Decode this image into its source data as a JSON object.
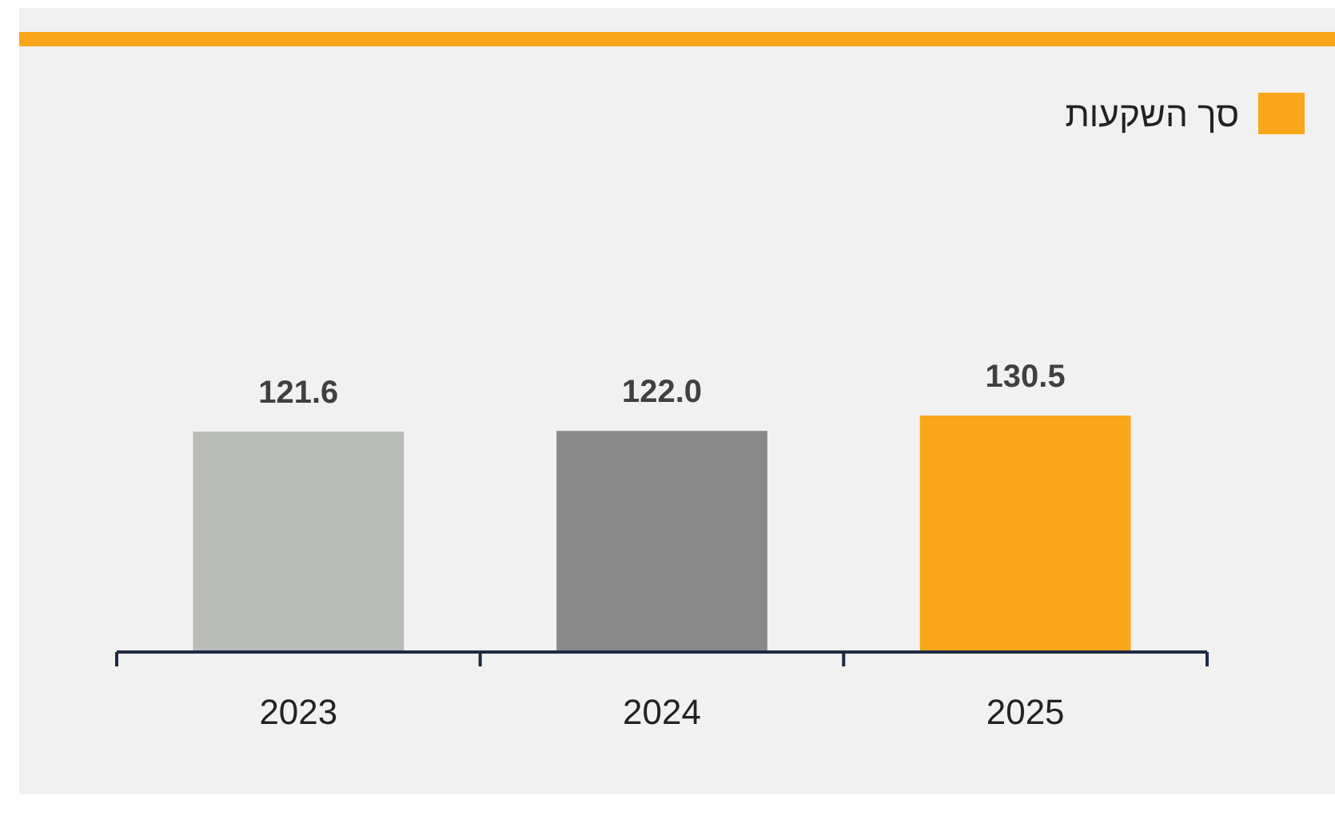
{
  "chart_data": {
    "type": "bar",
    "categories": [
      "2023",
      "2024",
      "2025"
    ],
    "series": [
      {
        "name": "סך השקעות",
        "color": "#f9a61a",
        "values": [
          121.6,
          122.0,
          130.5
        ],
        "colors": [
          "#b8bbb7",
          "#898989",
          "#f9a61a"
        ],
        "value_labels": [
          "121.6",
          "122.0",
          "130.5"
        ]
      }
    ],
    "tick_labels": "x",
    "legend": "top right"
  }
}
